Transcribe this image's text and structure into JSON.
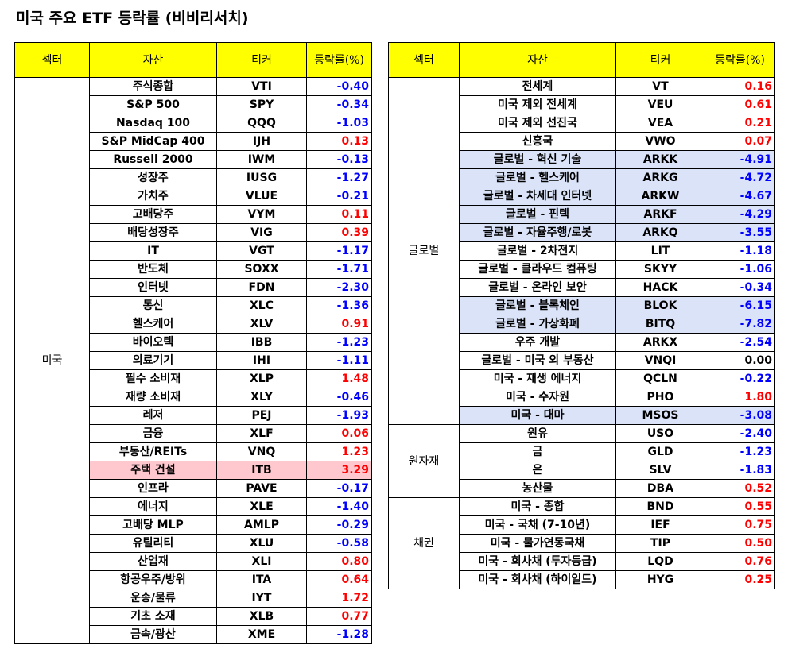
{
  "title": "미국 주요 ETF 등락률 (비비리서치)",
  "headers": {
    "sector": "섹터",
    "asset": "자산",
    "ticker": "티커",
    "change": "등락률(%)"
  },
  "left_table": {
    "sector": "미국",
    "rows": [
      {
        "asset": "주식종합",
        "ticker": "VTI",
        "change": "-0.40"
      },
      {
        "asset": "S&P 500",
        "ticker": "SPY",
        "change": "-0.34"
      },
      {
        "asset": "Nasdaq 100",
        "ticker": "QQQ",
        "change": "-1.03"
      },
      {
        "asset": "S&P MidCap 400",
        "ticker": "IJH",
        "change": "0.13"
      },
      {
        "asset": "Russell 2000",
        "ticker": "IWM",
        "change": "-0.13"
      },
      {
        "asset": "성장주",
        "ticker": "IUSG",
        "change": "-1.27"
      },
      {
        "asset": "가치주",
        "ticker": "VLUE",
        "change": "-0.21"
      },
      {
        "asset": "고배당주",
        "ticker": "VYM",
        "change": "0.11"
      },
      {
        "asset": "배당성장주",
        "ticker": "VIG",
        "change": "0.39"
      },
      {
        "asset": "IT",
        "ticker": "VGT",
        "change": "-1.17"
      },
      {
        "asset": "반도체",
        "ticker": "SOXX",
        "change": "-1.71"
      },
      {
        "asset": "인터넷",
        "ticker": "FDN",
        "change": "-2.30"
      },
      {
        "asset": "통신",
        "ticker": "XLC",
        "change": "-1.36"
      },
      {
        "asset": "헬스케어",
        "ticker": "XLV",
        "change": "0.91"
      },
      {
        "asset": "바이오텍",
        "ticker": "IBB",
        "change": "-1.23"
      },
      {
        "asset": "의료기기",
        "ticker": "IHI",
        "change": "-1.11"
      },
      {
        "asset": "필수 소비재",
        "ticker": "XLP",
        "change": "1.48"
      },
      {
        "asset": "재량 소비재",
        "ticker": "XLY",
        "change": "-0.46"
      },
      {
        "asset": "레저",
        "ticker": "PEJ",
        "change": "-1.93"
      },
      {
        "asset": "금융",
        "ticker": "XLF",
        "change": "0.06"
      },
      {
        "asset": "부동산/REITs",
        "ticker": "VNQ",
        "change": "1.23"
      },
      {
        "asset": "주택 건설",
        "ticker": "ITB",
        "change": "3.29",
        "highlight": "pink"
      },
      {
        "asset": "인프라",
        "ticker": "PAVE",
        "change": "-0.17"
      },
      {
        "asset": "에너지",
        "ticker": "XLE",
        "change": "-1.40"
      },
      {
        "asset": "고배당 MLP",
        "ticker": "AMLP",
        "change": "-0.29"
      },
      {
        "asset": "유틸리티",
        "ticker": "XLU",
        "change": "-0.58"
      },
      {
        "asset": "산업재",
        "ticker": "XLI",
        "change": "0.80"
      },
      {
        "asset": "항공우주/방위",
        "ticker": "ITA",
        "change": "0.64"
      },
      {
        "asset": "운송/물류",
        "ticker": "IYT",
        "change": "1.72"
      },
      {
        "asset": "기초 소재",
        "ticker": "XLB",
        "change": "0.77"
      },
      {
        "asset": "금속/광산",
        "ticker": "XME",
        "change": "-1.28"
      }
    ]
  },
  "right_table": {
    "groups": [
      {
        "sector": "글로벌",
        "rows": [
          {
            "asset": "전세계",
            "ticker": "VT",
            "change": "0.16"
          },
          {
            "asset": "미국 제외 전세계",
            "ticker": "VEU",
            "change": "0.61"
          },
          {
            "asset": "미국 제외 선진국",
            "ticker": "VEA",
            "change": "0.21"
          },
          {
            "asset": "신흥국",
            "ticker": "VWO",
            "change": "0.07"
          },
          {
            "asset": "글로벌 - 혁신 기술",
            "ticker": "ARKK",
            "change": "-4.91",
            "highlight": "blue"
          },
          {
            "asset": "글로벌 - 헬스케어",
            "ticker": "ARKG",
            "change": "-4.72",
            "highlight": "blue"
          },
          {
            "asset": "글로벌 - 차세대 인터넷",
            "ticker": "ARKW",
            "change": "-4.67",
            "highlight": "blue"
          },
          {
            "asset": "글로벌 - 핀텍",
            "ticker": "ARKF",
            "change": "-4.29",
            "highlight": "blue"
          },
          {
            "asset": "글로벌 - 자율주행/로봇",
            "ticker": "ARKQ",
            "change": "-3.55",
            "highlight": "blue"
          },
          {
            "asset": "글로벌 - 2차전지",
            "ticker": "LIT",
            "change": "-1.18"
          },
          {
            "asset": "글로벌 - 클라우드 컴퓨팅",
            "ticker": "SKYY",
            "change": "-1.06"
          },
          {
            "asset": "글로벌 - 온라인 보안",
            "ticker": "HACK",
            "change": "-0.34"
          },
          {
            "asset": "글로벌 - 블록체인",
            "ticker": "BLOK",
            "change": "-6.15",
            "highlight": "blue"
          },
          {
            "asset": "글로벌 - 가상화폐",
            "ticker": "BITQ",
            "change": "-7.82",
            "highlight": "blue"
          },
          {
            "asset": "우주 개발",
            "ticker": "ARKX",
            "change": "-2.54"
          },
          {
            "asset": "글로벌 - 미국 외 부동산",
            "ticker": "VNQI",
            "change": "0.00"
          },
          {
            "asset": "미국 - 재생 에너지",
            "ticker": "QCLN",
            "change": "-0.22"
          },
          {
            "asset": "미국 - 수자원",
            "ticker": "PHO",
            "change": "1.80"
          },
          {
            "asset": "미국 - 대마",
            "ticker": "MSOS",
            "change": "-3.08",
            "highlight": "blue"
          }
        ]
      },
      {
        "sector": "원자재",
        "rows": [
          {
            "asset": "원유",
            "ticker": "USO",
            "change": "-2.40"
          },
          {
            "asset": "금",
            "ticker": "GLD",
            "change": "-1.23"
          },
          {
            "asset": "은",
            "ticker": "SLV",
            "change": "-1.83"
          },
          {
            "asset": "농산물",
            "ticker": "DBA",
            "change": "0.52"
          }
        ]
      },
      {
        "sector": "채권",
        "rows": [
          {
            "asset": "미국 - 종합",
            "ticker": "BND",
            "change": "0.55"
          },
          {
            "asset": "미국 - 국채 (7-10년)",
            "ticker": "IEF",
            "change": "0.75"
          },
          {
            "asset": "미국 - 물가연동국채",
            "ticker": "TIP",
            "change": "0.50"
          },
          {
            "asset": "미국 - 회사채 (투자등급)",
            "ticker": "LQD",
            "change": "0.76"
          },
          {
            "asset": "미국 - 회사채 (하이일드)",
            "ticker": "HYG",
            "change": "0.25"
          }
        ]
      }
    ]
  }
}
